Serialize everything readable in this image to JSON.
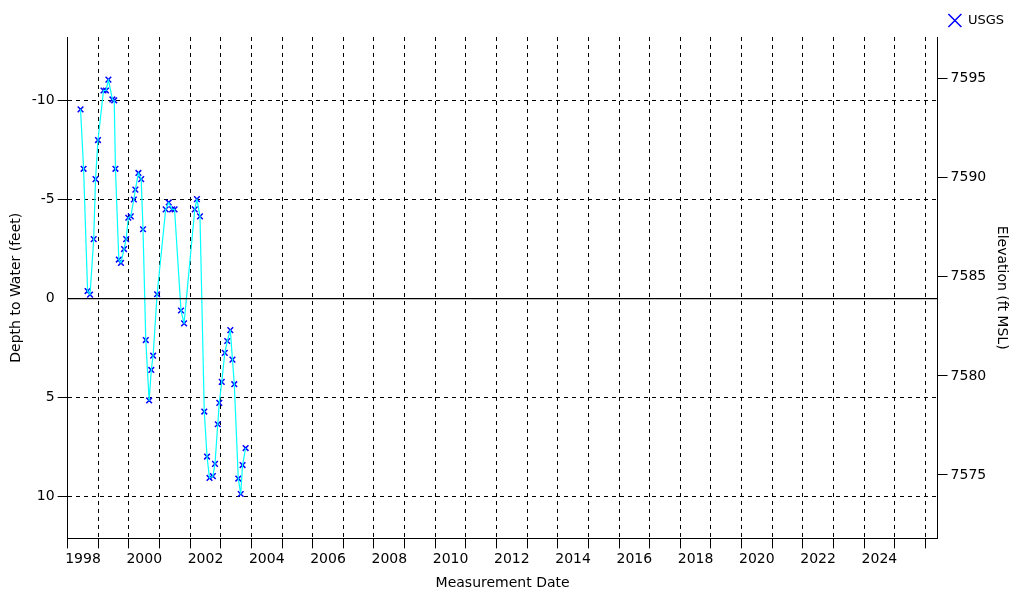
{
  "chart_data": {
    "type": "line",
    "xlabel": "Measurement Date",
    "ylabel": "Depth to Water (feet)",
    "y2label": "Elevation (ft MSL)",
    "x": [
      1998.42,
      1998.52,
      1998.65,
      1998.73,
      1998.85,
      1998.91,
      1998.99,
      1999.17,
      1999.25,
      1999.33,
      1999.46,
      1999.52,
      1999.56,
      1999.67,
      1999.74,
      1999.84,
      1999.91,
      1999.98,
      2000.06,
      2000.16,
      2000.21,
      2000.31,
      2000.4,
      2000.46,
      2000.55,
      2000.66,
      2000.73,
      2000.79,
      2000.92,
      2001.2,
      2001.3,
      2001.41,
      2001.49,
      2001.7,
      2001.8,
      2002.15,
      2002.22,
      2002.32,
      2002.46,
      2002.55,
      2002.63,
      2002.74,
      2002.81,
      2002.9,
      2002.95,
      2003.03,
      2003.13,
      2003.21,
      2003.31,
      2003.38,
      2003.44,
      2003.57,
      2003.65,
      2003.71,
      2003.81
    ],
    "series": [
      {
        "type": "line",
        "color": "#00ffff",
        "marker": "none",
        "values": [
          -9.55,
          -6.55,
          -0.38,
          -0.2,
          -3.0,
          -6.03,
          -8.0,
          -10.5,
          -10.5,
          -11.05,
          -10.05,
          -10.0,
          -6.55,
          -1.97,
          -1.8,
          -2.5,
          -3.0,
          -4.08,
          -4.15,
          -5.0,
          -5.5,
          -6.34,
          -6.03,
          -3.5,
          2.09,
          5.14,
          3.6,
          2.88,
          -0.22,
          -4.5,
          -4.85,
          -4.5,
          -4.5,
          0.6,
          1.25,
          -4.5,
          -5.02,
          -4.15,
          5.7,
          7.97,
          9.05,
          8.96,
          8.34,
          6.34,
          5.26,
          4.2,
          2.74,
          2.14,
          1.59,
          3.08,
          4.32,
          9.08,
          9.86,
          8.4,
          7.54
        ]
      },
      {
        "type": "scatter",
        "name": "USGS",
        "color": "#0000ff",
        "marker": "cross",
        "values": [
          -9.55,
          -6.55,
          -0.38,
          -0.2,
          -3.0,
          -6.03,
          -8.0,
          -10.5,
          -10.5,
          -11.05,
          -10.05,
          -10.0,
          -6.55,
          -1.97,
          -1.8,
          -2.5,
          -3.0,
          -4.08,
          -4.15,
          -5.0,
          -5.5,
          -6.34,
          -6.03,
          -3.5,
          2.09,
          5.14,
          3.6,
          2.88,
          -0.22,
          -4.5,
          -4.85,
          -4.5,
          -4.5,
          0.6,
          1.25,
          -4.5,
          -5.02,
          -4.15,
          5.7,
          7.97,
          9.05,
          8.96,
          8.34,
          6.34,
          5.26,
          4.2,
          2.74,
          2.14,
          1.59,
          3.08,
          4.32,
          9.08,
          9.86,
          8.4,
          7.54
        ]
      }
    ],
    "xlim": [
      1998.0,
      2026.4
    ],
    "xticks": [
      {
        "value": 1998,
        "label": null
      },
      {
        "value": 1998.5,
        "label": "1998"
      },
      {
        "value": 1999,
        "label": null
      },
      {
        "value": 2000,
        "label": null
      },
      {
        "value": 2000.5,
        "label": "2000"
      },
      {
        "value": 2001,
        "label": null
      },
      {
        "value": 2002,
        "label": null
      },
      {
        "value": 2002.5,
        "label": "2002"
      },
      {
        "value": 2003,
        "label": null
      },
      {
        "value": 2004,
        "label": null
      },
      {
        "value": 2004.5,
        "label": "2004"
      },
      {
        "value": 2005,
        "label": null
      },
      {
        "value": 2006,
        "label": null
      },
      {
        "value": 2006.5,
        "label": "2006"
      },
      {
        "value": 2007,
        "label": null
      },
      {
        "value": 2008,
        "label": null
      },
      {
        "value": 2008.5,
        "label": "2008"
      },
      {
        "value": 2009,
        "label": null
      },
      {
        "value": 2010,
        "label": null
      },
      {
        "value": 2010.5,
        "label": "2010"
      },
      {
        "value": 2011,
        "label": null
      },
      {
        "value": 2012,
        "label": null
      },
      {
        "value": 2012.5,
        "label": "2012"
      },
      {
        "value": 2013,
        "label": null
      },
      {
        "value": 2014,
        "label": null
      },
      {
        "value": 2014.5,
        "label": "2014"
      },
      {
        "value": 2015,
        "label": null
      },
      {
        "value": 2016,
        "label": null
      },
      {
        "value": 2016.5,
        "label": "2016"
      },
      {
        "value": 2017,
        "label": null
      },
      {
        "value": 2018,
        "label": null
      },
      {
        "value": 2018.5,
        "label": "2018"
      },
      {
        "value": 2019,
        "label": null
      },
      {
        "value": 2020,
        "label": null
      },
      {
        "value": 2020.5,
        "label": "2020"
      },
      {
        "value": 2021,
        "label": null
      },
      {
        "value": 2022,
        "label": null
      },
      {
        "value": 2022.5,
        "label": "2022"
      },
      {
        "value": 2023,
        "label": null
      },
      {
        "value": 2024,
        "label": null
      },
      {
        "value": 2024.5,
        "label": "2024"
      },
      {
        "value": 2025,
        "label": null
      },
      {
        "value": 2026,
        "label": null
      }
    ],
    "ylim": [
      12.1,
      -13.2
    ],
    "yticks": [
      -10,
      -5,
      0,
      5,
      10
    ],
    "y2lim": [
      7571.8,
      7597.1
    ],
    "y2ticks": [
      7575,
      7580,
      7585,
      7590,
      7595
    ],
    "ref_lines": [
      {
        "axis": "y",
        "value": 0,
        "color": "#000000",
        "line_style": "solid"
      }
    ],
    "grid": true,
    "legend": "top right",
    "line_style": "solid"
  }
}
